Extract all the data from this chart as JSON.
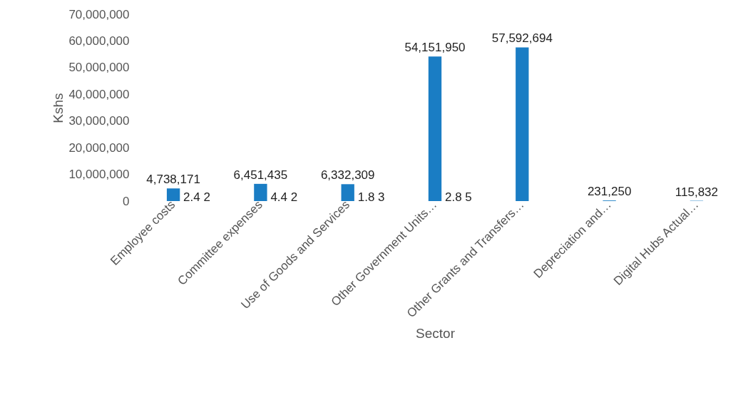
{
  "chart_data": {
    "type": "bar",
    "xlabel": "Sector",
    "ylabel": "Kshs",
    "categories": [
      "Employee costs",
      "Committee expenses",
      "Use of Goods and Services",
      "Other Government Units…",
      "Other Grants and Transfers…",
      "Depreciation and…",
      "Digital Hubs Actual…"
    ],
    "values": [
      4738171,
      6451435,
      6332309,
      54151950,
      57592694,
      231250,
      115832
    ],
    "value_labels": [
      "4,738,171",
      "6,451,435",
      "6,332,309",
      "54,151,950",
      "57,592,694",
      "231,250",
      "115,832"
    ],
    "color": "#1a7dc4",
    "ylim": [
      0,
      70000000
    ],
    "yticks": [
      {
        "value": 0,
        "label": "0"
      },
      {
        "value": 10000000,
        "label": "10,000,000"
      },
      {
        "value": 20000000,
        "label": "20,000,000"
      },
      {
        "value": 30000000,
        "label": "30,000,000"
      },
      {
        "value": 40000000,
        "label": "40,000,000"
      },
      {
        "value": 50000000,
        "label": "50,000,000"
      },
      {
        "value": 60000000,
        "label": "60,000,000"
      },
      {
        "value": 70000000,
        "label": "70,000,000"
      }
    ],
    "grid": false,
    "annotations": [
      "2.4 2",
      "4.4 2",
      "1.8 3",
      "2.8 5"
    ]
  }
}
